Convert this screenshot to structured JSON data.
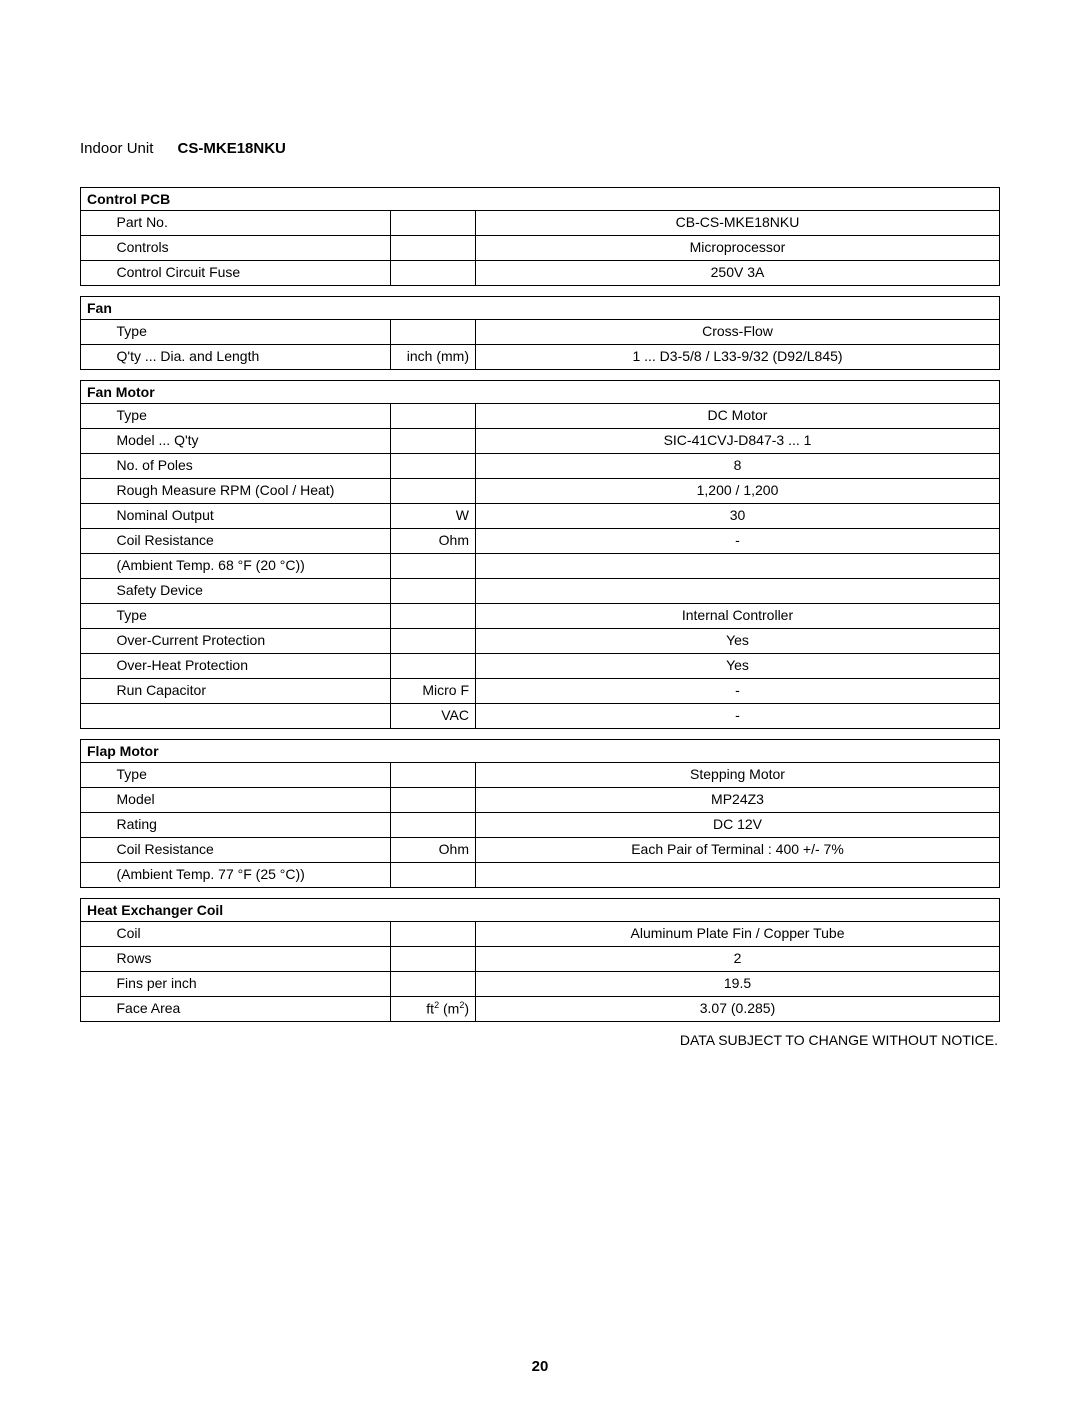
{
  "title_prefix": "Indoor Unit",
  "title_model": "CS-MKE18NKU",
  "footnote": "DATA SUBJECT TO CHANGE WITHOUT NOTICE.",
  "page_number": "20",
  "col_widths": {
    "gutter": "30px",
    "label": "280px",
    "unit": "85px",
    "value": "auto"
  },
  "sections": [
    {
      "header": "Control PCB",
      "rows": [
        {
          "label": "Part No.",
          "unit": "",
          "value": "CB-CS-MKE18NKU"
        },
        {
          "label": "Controls",
          "unit": "",
          "value": "Microprocessor"
        },
        {
          "label": "Control Circuit Fuse",
          "unit": "",
          "value": "250V 3A"
        }
      ]
    },
    {
      "header": "Fan",
      "rows": [
        {
          "label": "Type",
          "unit": "",
          "value": "Cross-Flow"
        },
        {
          "label": "Q'ty ... Dia. and Length",
          "unit": "inch (mm)",
          "value": "1 ... D3-5/8 / L33-9/32 (D92/L845)"
        }
      ]
    },
    {
      "header": "Fan Motor",
      "rows": [
        {
          "label": "Type",
          "unit": "",
          "value": "DC Motor"
        },
        {
          "label": "Model ... Q'ty",
          "unit": "",
          "value": "SIC-41CVJ-D847-3 ... 1"
        },
        {
          "label": "No. of Poles",
          "unit": "",
          "value": "8"
        },
        {
          "label": "Rough Measure RPM (Cool / Heat)",
          "unit": "",
          "value": "1,200 / 1,200"
        },
        {
          "label": "Nominal Output",
          "unit": "W",
          "value": "30"
        },
        {
          "label": "Coil Resistance",
          "unit": "Ohm",
          "value": "-",
          "extra": "(Ambient Temp. 68 °F (20 °C))"
        },
        {
          "label": "Safety Device",
          "unit": "",
          "value": "",
          "no_value_border": true
        },
        {
          "label": "Type",
          "indent": 1,
          "unit": "",
          "value": "Internal Controller"
        },
        {
          "label": "Over-Current Protection",
          "indent": 1,
          "unit": "",
          "value": "Yes"
        },
        {
          "label": "Over-Heat Protection",
          "indent": 1,
          "unit": "",
          "value": "Yes"
        },
        {
          "label": "Run Capacitor",
          "unit": "Micro F",
          "value": "-"
        },
        {
          "label": "",
          "unit": "VAC",
          "value": "-"
        }
      ]
    },
    {
      "header": "Flap Motor",
      "rows": [
        {
          "label": "Type",
          "unit": "",
          "value": "Stepping Motor"
        },
        {
          "label": "Model",
          "unit": "",
          "value": "MP24Z3"
        },
        {
          "label": "Rating",
          "unit": "",
          "value": "DC 12V"
        },
        {
          "label": "Coil Resistance",
          "unit": "Ohm",
          "value": "Each Pair of Terminal : 400 +/- 7%",
          "extra": "(Ambient Temp. 77 °F (25 °C))"
        }
      ]
    },
    {
      "header": "Heat Exchanger Coil",
      "rows": [
        {
          "label": "Coil",
          "unit": "",
          "value": "Aluminum Plate Fin / Copper Tube"
        },
        {
          "label": "Rows",
          "unit": "",
          "value": "2"
        },
        {
          "label": "Fins per inch",
          "unit": "",
          "value": "19.5"
        },
        {
          "label": "Face Area",
          "unit": "ft² (m²)",
          "unit_html": "ft<span class=\"sup\">2</span> (m<span class=\"sup\">2</span>)",
          "value": "3.07 (0.285)"
        }
      ]
    }
  ]
}
